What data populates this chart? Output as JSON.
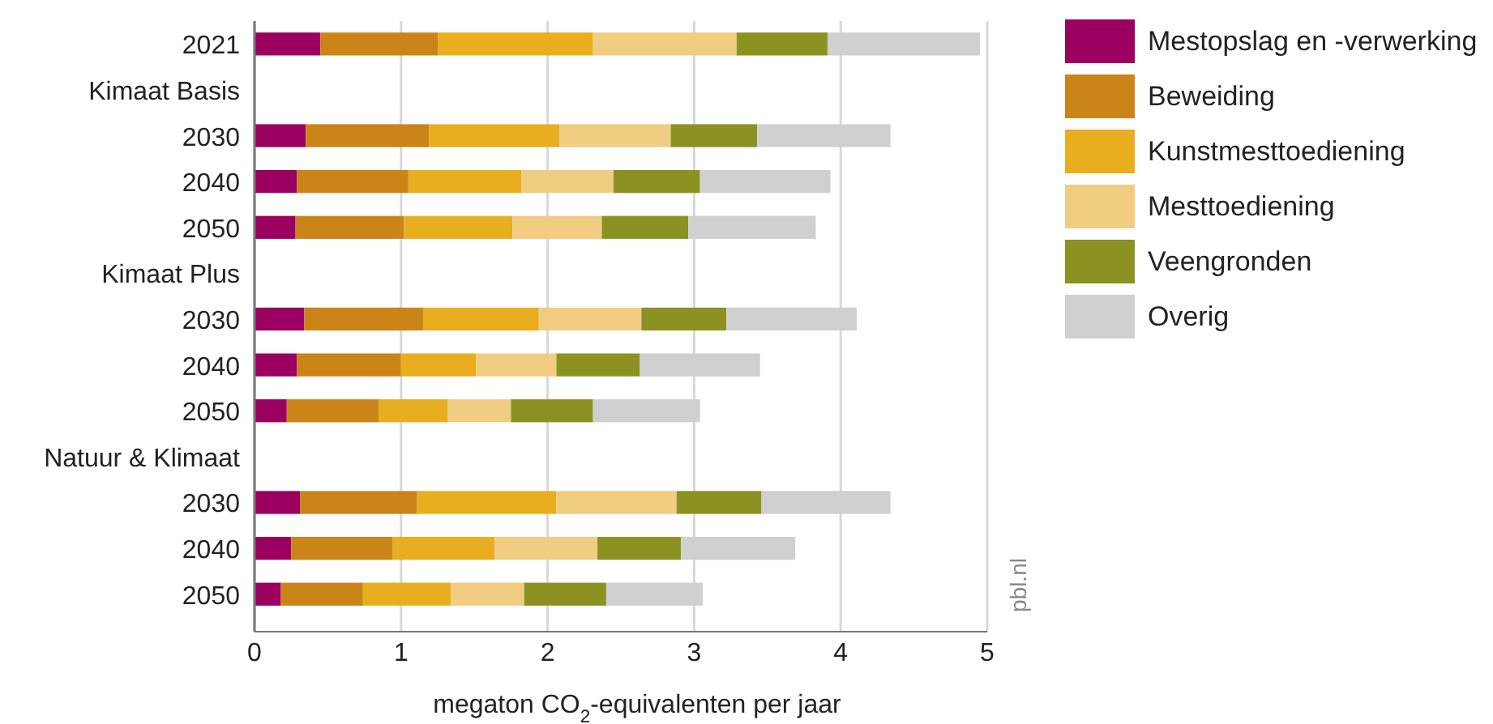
{
  "chart_data": {
    "type": "bar",
    "orientation": "horizontal",
    "stacked": true,
    "xlabel": "megaton CO$_{2}$-equivalenten per jaar",
    "categories": [
      "2021",
      "Kimaat Basis",
      "2030",
      "2040",
      "2050",
      "Kimaat Plus",
      "2030",
      "2040",
      "2050",
      "Natuur & Klimaat",
      "2030",
      "2040",
      "2050"
    ],
    "series": [
      {
        "name": "Mestopslag en -verwerking",
        "color": "#9b0060",
        "values": [
          0.45,
          null,
          0.35,
          0.29,
          0.28,
          null,
          0.34,
          0.29,
          0.22,
          null,
          0.31,
          0.25,
          0.18
        ]
      },
      {
        "name": "Beweiding",
        "color": "#cb8417",
        "values": [
          0.8,
          null,
          0.84,
          0.76,
          0.74,
          null,
          0.81,
          0.71,
          0.63,
          null,
          0.8,
          0.69,
          0.56
        ]
      },
      {
        "name": "Kunstmesttoediening",
        "color": "#e8ae1f",
        "values": [
          1.06,
          null,
          0.89,
          0.77,
          0.74,
          null,
          0.79,
          0.51,
          0.47,
          null,
          0.95,
          0.7,
          0.6
        ]
      },
      {
        "name": "Mesttoediening",
        "color": "#f1cd82",
        "values": [
          0.98,
          null,
          0.76,
          0.63,
          0.61,
          null,
          0.7,
          0.55,
          0.43,
          null,
          0.82,
          0.7,
          0.5
        ]
      },
      {
        "name": "Veengronden",
        "color": "#8c9222",
        "values": [
          0.62,
          null,
          0.59,
          0.59,
          0.59,
          null,
          0.58,
          0.57,
          0.56,
          null,
          0.58,
          0.57,
          0.56
        ]
      },
      {
        "name": "Overig",
        "color": "#cfd0cf",
        "values": [
          1.04,
          null,
          0.91,
          0.89,
          0.87,
          null,
          0.89,
          0.82,
          0.73,
          null,
          0.88,
          0.78,
          0.66
        ]
      }
    ],
    "xlim": [
      0,
      5
    ],
    "xticks": [
      0,
      1,
      2,
      3,
      4,
      5
    ],
    "grid": "x",
    "legend": "right",
    "annotations": [
      "pbl.nl"
    ]
  }
}
